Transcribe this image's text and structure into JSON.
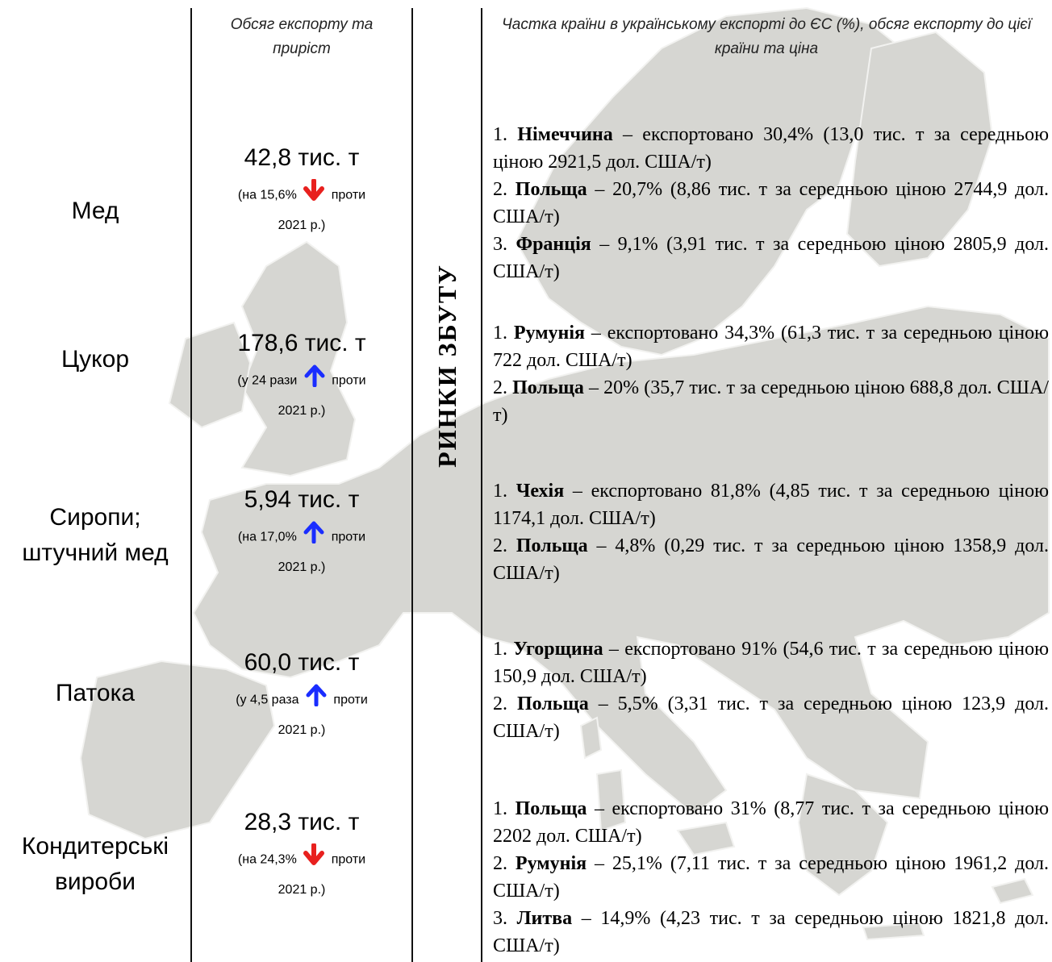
{
  "headers": {
    "volume": "Обсяг експорту та приріст",
    "share": "Частка країни в українському експорті до ЄС (%), обсяг експорту до цієї країни та ціна"
  },
  "side_label": "РИНКИ ЗБУТУ",
  "colors": {
    "down": "#e8201e",
    "up": "#1a2dff",
    "map": "#d6d6d2"
  },
  "rows": [
    {
      "product": "Мед",
      "volume": "42,8 тис. т",
      "change_pre": "(на 15,6%",
      "change_dir": "down",
      "change_post": "проти",
      "change_year": "2021 р.)",
      "markets": [
        {
          "num": "1.",
          "country": "Німеччина",
          "text": " – експортовано 30,4% (13,0 тис. т за середньою ціною 2921,5 дол. США/т)"
        },
        {
          "num": "2.",
          "country": "Польща",
          "text": " – 20,7% (8,86 тис. т за середньою ціною 2744,9 дол. США/т)"
        },
        {
          "num": "3.",
          "country": "Франція",
          "text": " – 9,1% (3,91 тис. т за середньою ціною 2805,9 дол. США/т)"
        }
      ]
    },
    {
      "product": "Цукор",
      "volume": "178,6 тис. т",
      "change_pre": "(у 24 рази",
      "change_dir": "up",
      "change_post": "проти",
      "change_year": "2021 р.)",
      "markets": [
        {
          "num": "1.",
          "country": "Румунія",
          "text": " – експортовано 34,3% (61,3 тис. т за середньою ціною 722 дол. США/т)"
        },
        {
          "num": "2.",
          "country": "Польща",
          "text": " – 20% (35,7 тис. т за середньою ціною 688,8 дол. США/т)"
        }
      ]
    },
    {
      "product": "Сиропи; штучний мед",
      "volume": "5,94 тис. т",
      "change_pre": "(на 17,0%",
      "change_dir": "up",
      "change_post": "проти",
      "change_year": "2021 р.)",
      "markets": [
        {
          "num": "1.",
          "country": "Чехія",
          "text": " – експортовано 81,8% (4,85 тис. т за середньою ціною 1174,1 дол. США/т)"
        },
        {
          "num": "2.",
          "country": "Польща",
          "text": " – 4,8% (0,29 тис. т за середньою ціною 1358,9 дол. США/т)"
        }
      ]
    },
    {
      "product": "Патока",
      "volume": "60,0 тис. т",
      "change_pre": "(у 4,5 раза",
      "change_dir": "up",
      "change_post": "проти",
      "change_year": "2021 р.)",
      "markets": [
        {
          "num": "1.",
          "country": "Угорщина",
          "text": " – експортовано 91% (54,6 тис. т за середньою ціною 150,9 дол. США/т)"
        },
        {
          "num": "2.",
          "country": "Польща",
          "text": " – 5,5% (3,31 тис. т за середньою ціною 123,9 дол. США/т)"
        }
      ]
    },
    {
      "product": "Кондитерські вироби",
      "volume": "28,3 тис. т",
      "change_pre": "(на 24,3%",
      "change_dir": "down",
      "change_post": "проти",
      "change_year": "2021 р.)",
      "markets": [
        {
          "num": "1.",
          "country": "Польща",
          "text": " – експортовано 31% (8,77 тис. т за середньою ціною 2202 дол. США/т)"
        },
        {
          "num": "2.",
          "country": "Румунія",
          "text": " – 25,1% (7,11 тис. т за середньою ціною 1961,2 дол. США/т)"
        },
        {
          "num": "3.",
          "country": "Литва",
          "text": " – 14,9% (4,23 тис. т за середньою ціною 1821,8 дол. США/т)"
        }
      ]
    }
  ]
}
